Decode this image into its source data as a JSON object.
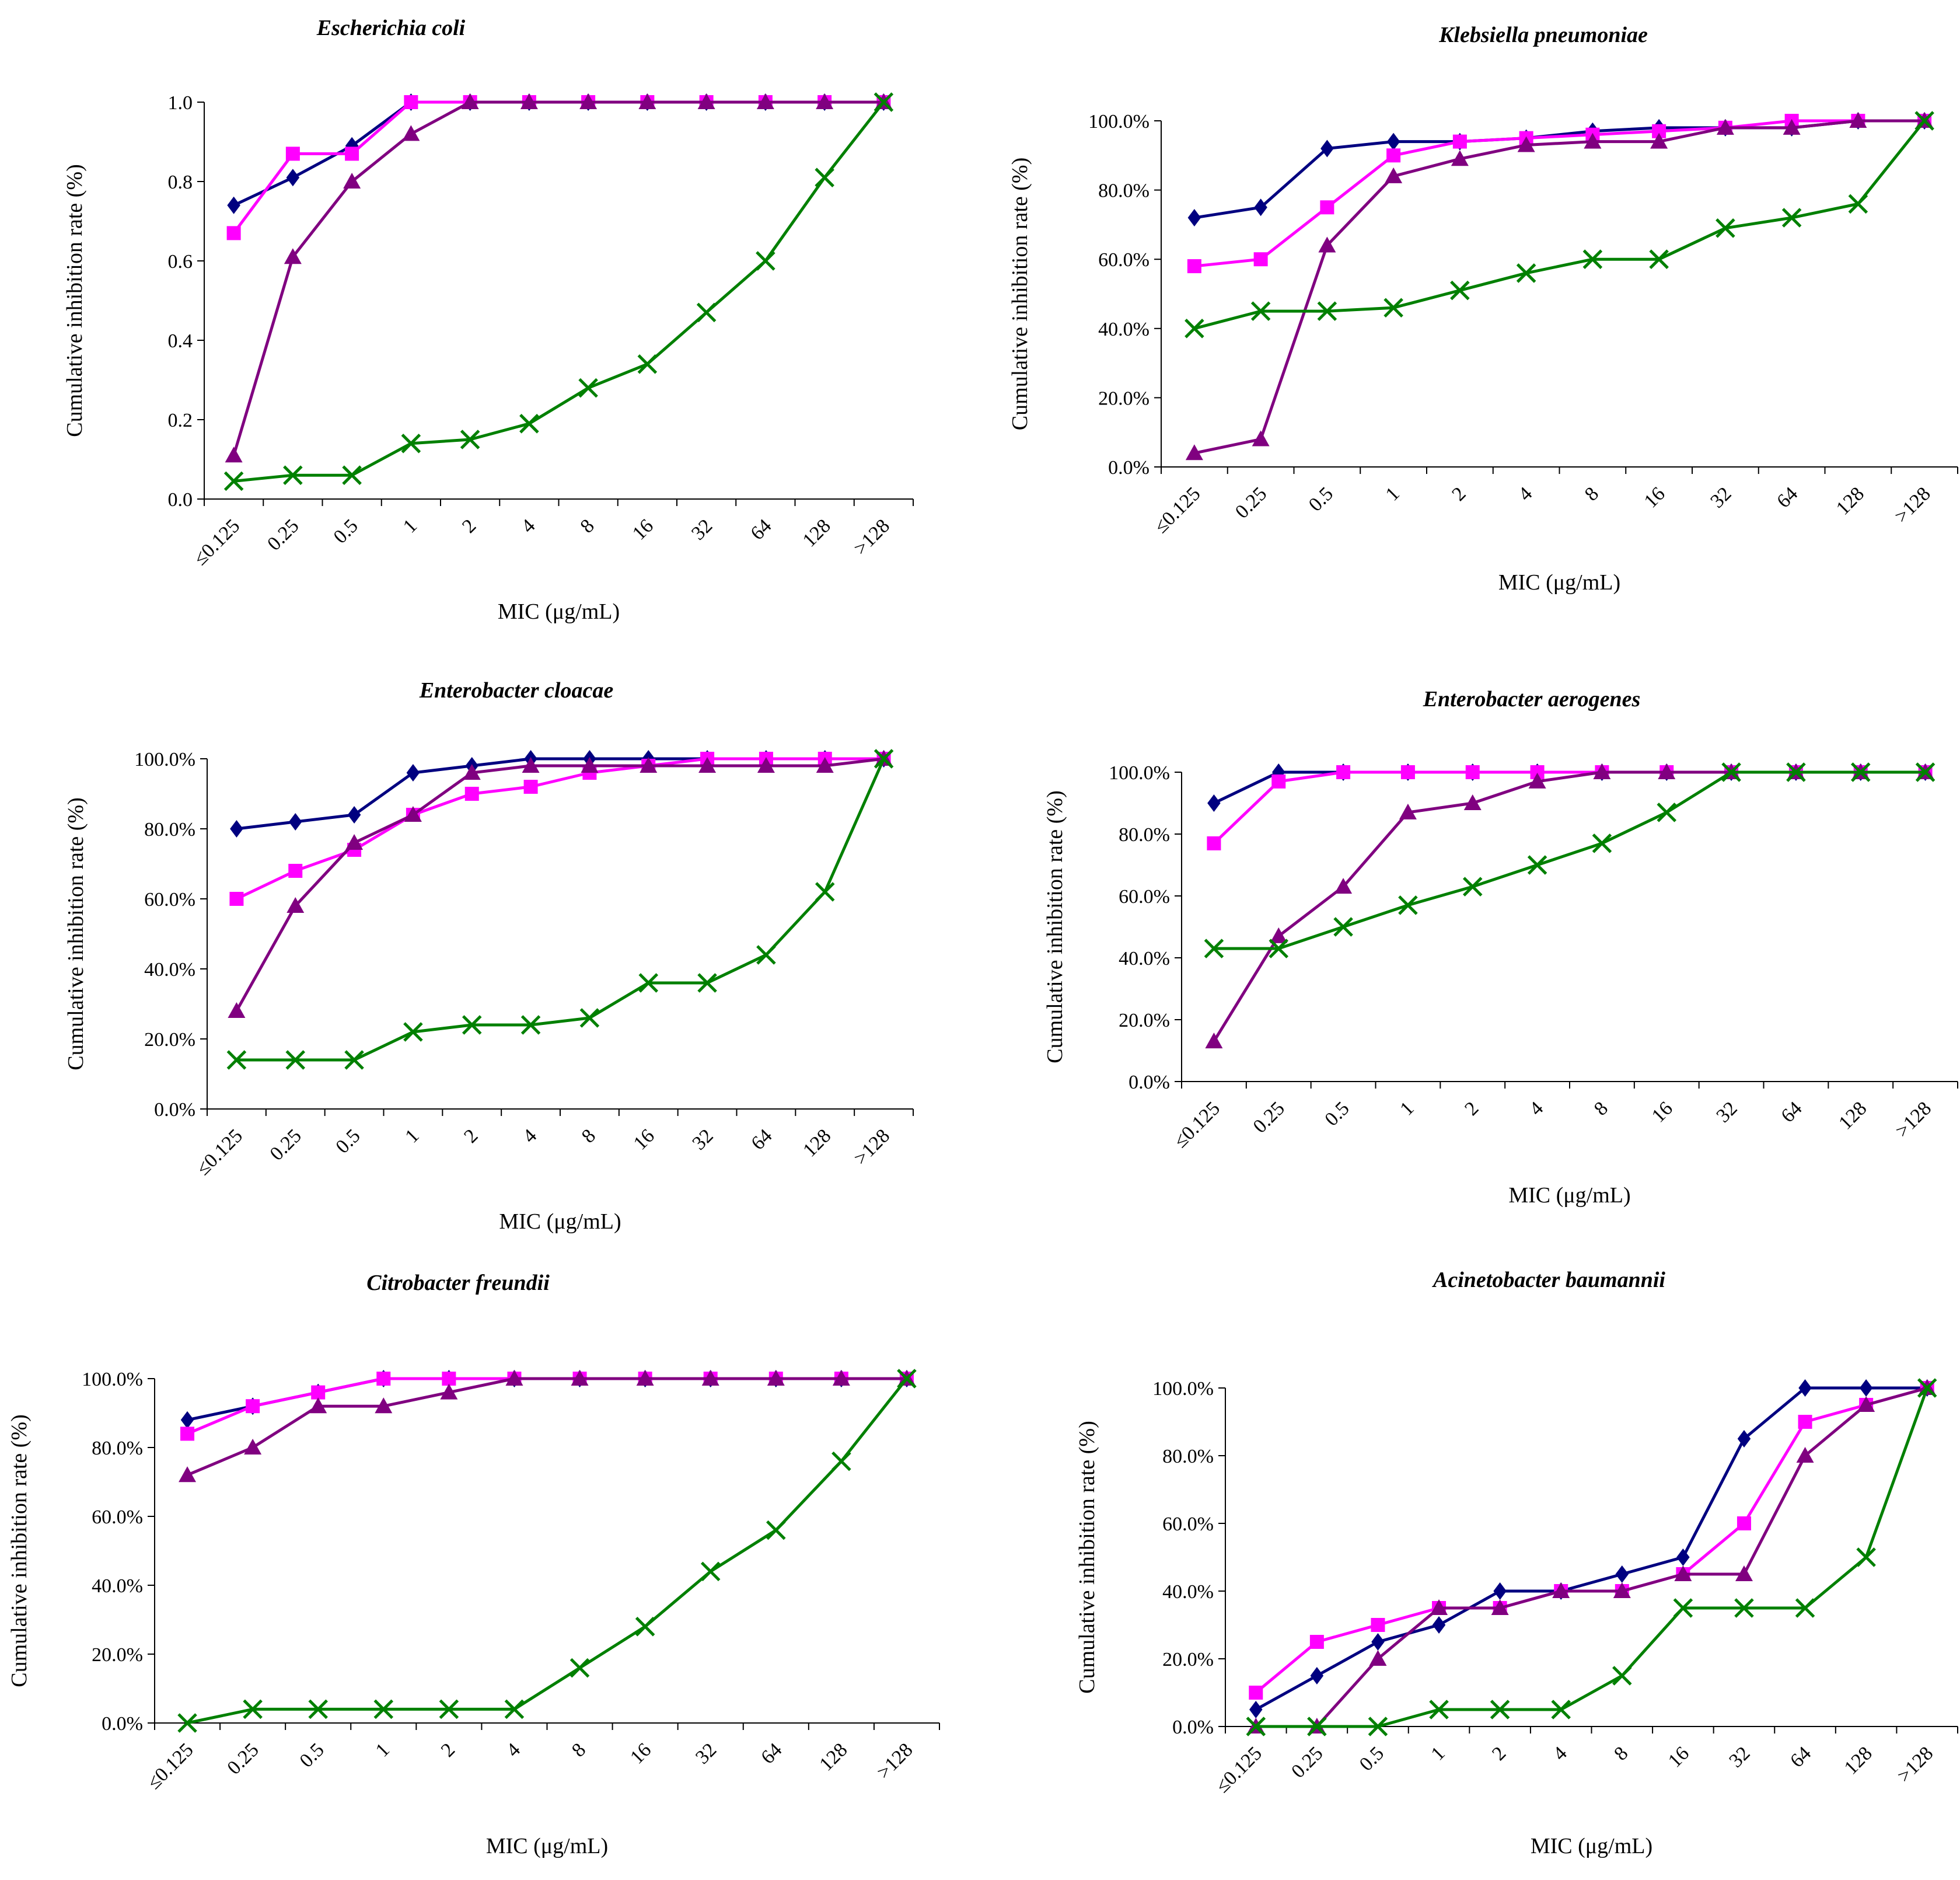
{
  "colors": {
    "series1": "#000080",
    "series2": "#ff00ff",
    "series3": "#800080",
    "series4": "#008000"
  },
  "chart_data": [
    {
      "type": "line",
      "title": "Escherichia coli",
      "xlabel": "MIC (μg/mL)",
      "ylabel": "Cumulative inhibition rate (%)",
      "categories": [
        "≤0.125",
        "0.25",
        "0.5",
        "1",
        "2",
        "4",
        "8",
        "16",
        "32",
        "64",
        "128",
        ">128"
      ],
      "yticks": [
        "0.0",
        "0.2",
        "0.4",
        "0.6",
        "0.8",
        "1.0"
      ],
      "ylim": [
        0,
        1
      ],
      "grid": false,
      "series": [
        {
          "marker": "diamond",
          "values": [
            0.74,
            0.81,
            0.89,
            1.0,
            1.0,
            1.0,
            1.0,
            1.0,
            1.0,
            1.0,
            1.0,
            1.0
          ]
        },
        {
          "marker": "square",
          "values": [
            0.67,
            0.87,
            0.87,
            1.0,
            1.0,
            1.0,
            1.0,
            1.0,
            1.0,
            1.0,
            1.0,
            1.0
          ]
        },
        {
          "marker": "triangle",
          "values": [
            0.11,
            0.61,
            0.8,
            0.92,
            1.0,
            1.0,
            1.0,
            1.0,
            1.0,
            1.0,
            1.0,
            1.0
          ]
        },
        {
          "marker": "x",
          "values": [
            0.045,
            0.06,
            0.06,
            0.14,
            0.15,
            0.19,
            0.28,
            0.34,
            0.47,
            0.6,
            0.81,
            1.0
          ]
        }
      ]
    },
    {
      "type": "line",
      "title": "Klebsiella pneumoniae",
      "xlabel": "MIC (μg/mL)",
      "ylabel": "Cumulative inhibition rate (%)",
      "categories": [
        "≤0.125",
        "0.25",
        "0.5",
        "1",
        "2",
        "4",
        "8",
        "16",
        "32",
        "64",
        "128",
        ">128"
      ],
      "yticks": [
        "0.0%",
        "20.0%",
        "40.0%",
        "60.0%",
        "80.0%",
        "100.0%"
      ],
      "ylim": [
        0,
        100
      ],
      "grid": false,
      "series": [
        {
          "marker": "diamond",
          "values": [
            72,
            75,
            92,
            94,
            94,
            95,
            97,
            98,
            98,
            98,
            100,
            100
          ]
        },
        {
          "marker": "square",
          "values": [
            58,
            60,
            75,
            90,
            94,
            95,
            96,
            97,
            98,
            100,
            100,
            100
          ]
        },
        {
          "marker": "triangle",
          "values": [
            4,
            8,
            64,
            84,
            89,
            93,
            94,
            94,
            98,
            98,
            100,
            100
          ]
        },
        {
          "marker": "x",
          "values": [
            40,
            45,
            45,
            46,
            51,
            56,
            60,
            60,
            69,
            72,
            76,
            100
          ]
        }
      ]
    },
    {
      "type": "line",
      "title": "Enterobacter cloacae",
      "xlabel": "MIC (μg/mL)",
      "ylabel": "Cumulative inhibition rate (%)",
      "categories": [
        "≤0.125",
        "0.25",
        "0.5",
        "1",
        "2",
        "4",
        "8",
        "16",
        "32",
        "64",
        "128",
        ">128"
      ],
      "yticks": [
        "0.0%",
        "20.0%",
        "40.0%",
        "60.0%",
        "80.0%",
        "100.0%"
      ],
      "ylim": [
        0,
        100
      ],
      "grid": false,
      "series": [
        {
          "marker": "diamond",
          "values": [
            80,
            82,
            84,
            96,
            98,
            100,
            100,
            100,
            100,
            100,
            100,
            100
          ]
        },
        {
          "marker": "square",
          "values": [
            60,
            68,
            74,
            84,
            90,
            92,
            96,
            98,
            100,
            100,
            100,
            100
          ]
        },
        {
          "marker": "triangle",
          "values": [
            28,
            58,
            76,
            84,
            96,
            98,
            98,
            98,
            98,
            98,
            98,
            100
          ]
        },
        {
          "marker": "x",
          "values": [
            14,
            14,
            14,
            22,
            24,
            24,
            26,
            36,
            36,
            44,
            62,
            100
          ]
        }
      ]
    },
    {
      "type": "line",
      "title": "Enterobacter aerogenes",
      "xlabel": "MIC (μg/mL)",
      "ylabel": "Cumulative inhibition rate (%)",
      "categories": [
        "≤0.125",
        "0.25",
        "0.5",
        "1",
        "2",
        "4",
        "8",
        "16",
        "32",
        "64",
        "128",
        ">128"
      ],
      "yticks": [
        "0.0%",
        "20.0%",
        "40.0%",
        "60.0%",
        "80.0%",
        "100.0%"
      ],
      "ylim": [
        0,
        100
      ],
      "grid": false,
      "series": [
        {
          "marker": "diamond",
          "values": [
            90,
            100,
            100,
            100,
            100,
            100,
            100,
            100,
            100,
            100,
            100,
            100
          ]
        },
        {
          "marker": "square",
          "values": [
            77,
            97,
            100,
            100,
            100,
            100,
            100,
            100,
            100,
            100,
            100,
            100
          ]
        },
        {
          "marker": "triangle",
          "values": [
            13,
            47,
            63,
            87,
            90,
            97,
            100,
            100,
            100,
            100,
            100,
            100
          ]
        },
        {
          "marker": "x",
          "values": [
            43,
            43,
            50,
            57,
            63,
            70,
            77,
            87,
            100,
            100,
            100,
            100
          ]
        }
      ]
    },
    {
      "type": "line",
      "title": "Citrobacter freundii",
      "xlabel": "MIC (μg/mL)",
      "ylabel": "Cumulative inhibition rate (%)",
      "categories": [
        "≤0.125",
        "0.25",
        "0.5",
        "1",
        "2",
        "4",
        "8",
        "16",
        "32",
        "64",
        "128",
        ">128"
      ],
      "yticks": [
        "0.0%",
        "20.0%",
        "40.0%",
        "60.0%",
        "80.0%",
        "100.0%"
      ],
      "ylim": [
        0,
        100
      ],
      "grid": false,
      "series": [
        {
          "marker": "diamond",
          "values": [
            88,
            92,
            96,
            100,
            100,
            100,
            100,
            100,
            100,
            100,
            100,
            100
          ]
        },
        {
          "marker": "square",
          "values": [
            84,
            92,
            96,
            100,
            100,
            100,
            100,
            100,
            100,
            100,
            100,
            100
          ]
        },
        {
          "marker": "triangle",
          "values": [
            72,
            80,
            92,
            92,
            96,
            100,
            100,
            100,
            100,
            100,
            100,
            100
          ]
        },
        {
          "marker": "x",
          "values": [
            0,
            4,
            4,
            4,
            4,
            4,
            16,
            28,
            44,
            56,
            76,
            100
          ]
        }
      ]
    },
    {
      "type": "line",
      "title": "Acinetobacter baumannii",
      "xlabel": "MIC (μg/mL)",
      "ylabel": "Cumulative inhibition rate (%)",
      "categories": [
        "≤0.125",
        "0.25",
        "0.5",
        "1",
        "2",
        "4",
        "8",
        "16",
        "32",
        "64",
        "128",
        ">128"
      ],
      "yticks": [
        "0.0%",
        "20.0%",
        "40.0%",
        "60.0%",
        "80.0%",
        "100.0%"
      ],
      "ylim": [
        0,
        100
      ],
      "grid": false,
      "series": [
        {
          "marker": "diamond",
          "values": [
            5,
            15,
            25,
            30,
            40,
            40,
            45,
            50,
            85,
            100,
            100,
            100
          ]
        },
        {
          "marker": "square",
          "values": [
            10,
            25,
            30,
            35,
            35,
            40,
            40,
            45,
            60,
            90,
            95,
            100
          ]
        },
        {
          "marker": "triangle",
          "values": [
            0,
            0,
            20,
            35,
            35,
            40,
            40,
            45,
            45,
            80,
            95,
            100
          ]
        },
        {
          "marker": "x",
          "values": [
            0,
            0,
            0,
            5,
            5,
            5,
            15,
            35,
            35,
            35,
            50,
            100
          ]
        }
      ]
    }
  ]
}
